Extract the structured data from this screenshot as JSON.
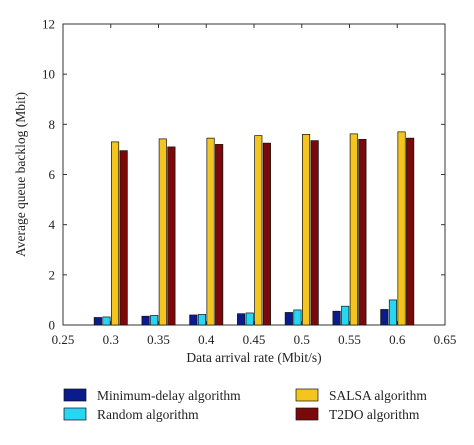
{
  "chart_data": {
    "type": "bar",
    "title": "",
    "xlabel": "Data arrival rate (Mbit/s)",
    "ylabel": "Average queue backlog (Mbit)",
    "xlim": [
      0.25,
      0.65
    ],
    "ylim": [
      0,
      12
    ],
    "xticks": [
      "0.25",
      "0.3",
      "0.35",
      "0.4",
      "0.45",
      "0.5",
      "0.55",
      "0.6",
      "0.65"
    ],
    "yticks": [
      "0",
      "2",
      "4",
      "6",
      "8",
      "10",
      "12"
    ],
    "x": [
      0.3,
      0.35,
      0.4,
      0.45,
      0.5,
      0.55,
      0.6
    ],
    "grid": false,
    "legend_position": "bottom",
    "series": [
      {
        "name": "Minimum-delay algorithm",
        "color": "#0a1c8c",
        "values": [
          0.3,
          0.35,
          0.4,
          0.45,
          0.5,
          0.55,
          0.62
        ]
      },
      {
        "name": "Random algorithm",
        "color": "#27d6f2",
        "values": [
          0.32,
          0.38,
          0.42,
          0.48,
          0.6,
          0.75,
          1.0
        ]
      },
      {
        "name": "SALSA algorithm",
        "color": "#f4c51f",
        "values": [
          7.3,
          7.42,
          7.45,
          7.55,
          7.6,
          7.62,
          7.7
        ]
      },
      {
        "name": "T2DO algorithm",
        "color": "#7a0a0a",
        "values": [
          6.95,
          7.1,
          7.2,
          7.25,
          7.35,
          7.4,
          7.45
        ]
      }
    ]
  }
}
